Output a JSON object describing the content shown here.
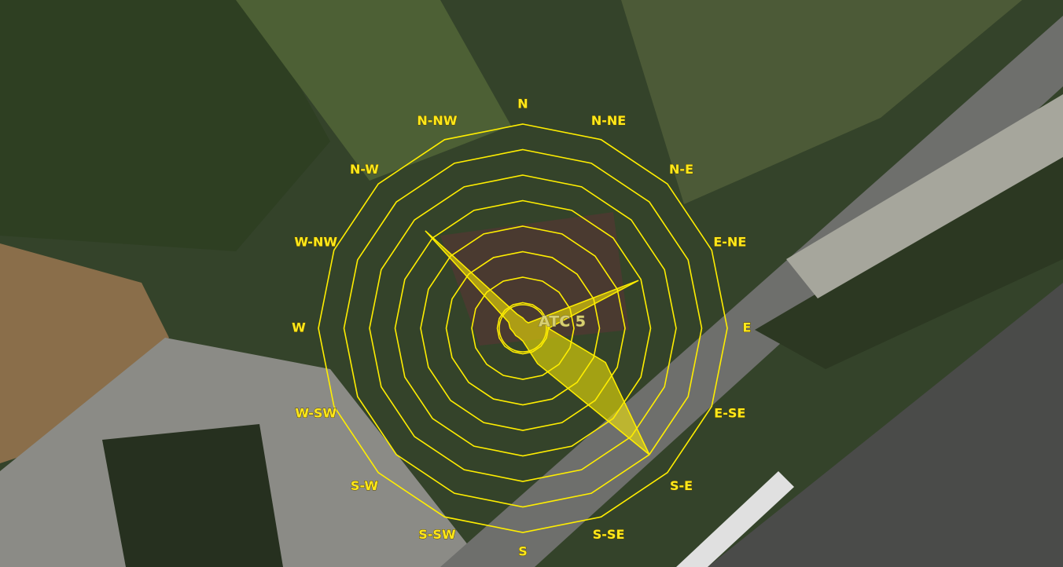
{
  "chart_data": {
    "type": "radar",
    "station": "ATC 5",
    "categories": [
      "N",
      "N-NE",
      "N-E",
      "E-NE",
      "E",
      "E-SE",
      "S-E",
      "S-SE",
      "S",
      "S-SW",
      "S-W",
      "W-SW",
      "W",
      "W-NW",
      "N-W",
      "N-NW"
    ],
    "values": [
      0.4,
      0.3,
      0.3,
      4.9,
      1.0,
      3.5,
      7.0,
      1.5,
      0.5,
      0.4,
      0.4,
      0.4,
      0.5,
      0.6,
      5.4,
      0.6
    ],
    "color": "#ffee00",
    "rlim": [
      0,
      8
    ],
    "rticks": [
      1,
      2,
      3,
      4,
      5,
      6,
      7,
      8
    ]
  }
}
